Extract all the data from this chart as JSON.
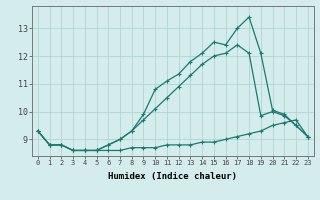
{
  "xlabel": "Humidex (Indice chaleur)",
  "bg_color": "#d4edec",
  "grid_color": "#aed4d0",
  "line_color": "#1a7a6e",
  "x": [
    0,
    1,
    2,
    3,
    4,
    5,
    6,
    7,
    8,
    9,
    10,
    11,
    12,
    13,
    14,
    15,
    16,
    17,
    18,
    19,
    20,
    21,
    22,
    23
  ],
  "y_bottom": [
    9.3,
    8.8,
    8.8,
    8.6,
    8.6,
    8.6,
    8.6,
    8.6,
    8.7,
    8.7,
    8.7,
    8.8,
    8.8,
    8.8,
    8.9,
    8.9,
    9.0,
    9.1,
    9.2,
    9.3,
    9.5,
    9.6,
    9.7,
    9.1
  ],
  "y_mid": [
    9.3,
    8.8,
    8.8,
    8.6,
    8.6,
    8.6,
    8.8,
    9.0,
    9.3,
    9.7,
    10.1,
    10.5,
    10.9,
    11.3,
    11.7,
    12.0,
    12.1,
    12.4,
    12.1,
    9.85,
    10.0,
    9.85,
    9.5,
    9.1
  ],
  "y_top": [
    9.3,
    8.8,
    8.8,
    8.6,
    8.6,
    8.6,
    8.8,
    9.0,
    9.3,
    9.9,
    10.8,
    11.1,
    11.35,
    11.8,
    12.1,
    12.5,
    12.4,
    13.0,
    13.4,
    12.1,
    10.05,
    9.9,
    9.5,
    9.1
  ],
  "ylim": [
    8.4,
    13.8
  ],
  "yticks": [
    9,
    10,
    11,
    12,
    13
  ],
  "xlim": [
    -0.5,
    23.5
  ]
}
